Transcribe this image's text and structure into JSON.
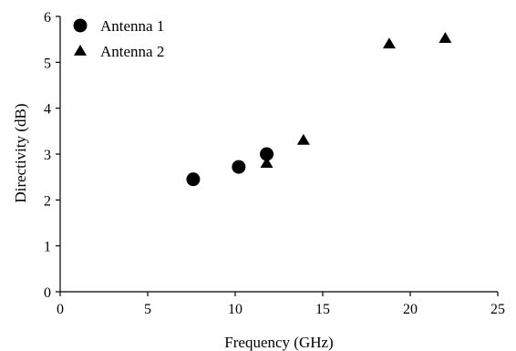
{
  "chart_data": {
    "type": "scatter",
    "title": "",
    "xlabel": "Frequency (GHz)",
    "ylabel": "Directivity  (dB)",
    "xlim": [
      0,
      25
    ],
    "ylim": [
      0,
      6
    ],
    "xticks": [
      0,
      5,
      10,
      15,
      20,
      25
    ],
    "yticks": [
      0,
      1,
      2,
      3,
      4,
      5,
      6
    ],
    "grid": false,
    "legend": "top-left",
    "series": [
      {
        "name": "Antenna 1",
        "marker": "circle",
        "color": "#000000",
        "points": [
          {
            "x": 7.6,
            "y": 2.45
          },
          {
            "x": 10.2,
            "y": 2.72
          },
          {
            "x": 11.8,
            "y": 3.0
          }
        ]
      },
      {
        "name": "Antenna 2",
        "marker": "triangle",
        "color": "#000000",
        "points": [
          {
            "x": 11.8,
            "y": 2.8
          },
          {
            "x": 13.9,
            "y": 3.3
          },
          {
            "x": 18.8,
            "y": 5.4
          },
          {
            "x": 22.0,
            "y": 5.52
          }
        ]
      }
    ]
  }
}
